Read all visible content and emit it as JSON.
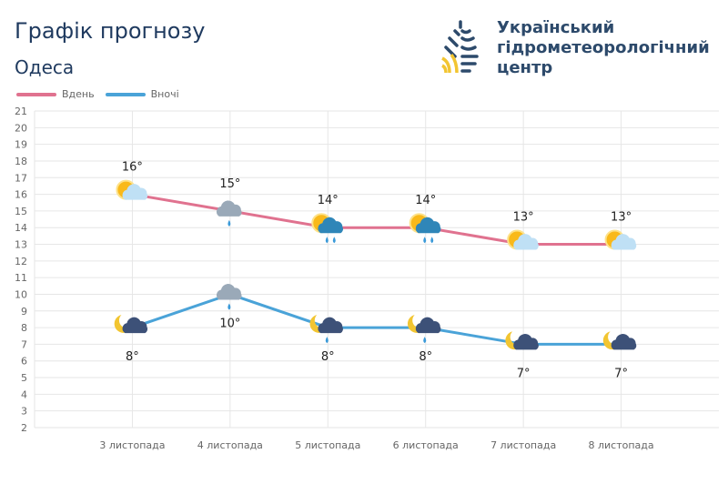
{
  "header": {
    "title": "Графік прогнозу",
    "city": "Одеса"
  },
  "logo": {
    "lines": [
      "Український",
      "гідрометеорологічний",
      "центр"
    ]
  },
  "chart_data": {
    "type": "line",
    "categories": [
      "3 листопада",
      "4 листопада",
      "5 листопада",
      "6 листопада",
      "7 листопада",
      "8 листопада"
    ],
    "series": [
      {
        "name": "Вдень",
        "color": "#e0728f",
        "values": [
          16,
          15,
          14,
          14,
          13,
          13
        ],
        "labels": [
          "16°",
          "15°",
          "14°",
          "14°",
          "13°",
          "13°"
        ],
        "icons": [
          "sun-cloud-icon",
          "cloud-rain-icon",
          "sun-cloud-rain-icon",
          "sun-cloud-rain-icon",
          "sun-cloud-icon",
          "sun-cloud-icon"
        ]
      },
      {
        "name": "Вночі",
        "color": "#4aa3d8",
        "values": [
          8,
          10,
          8,
          8,
          7,
          7
        ],
        "labels": [
          "8°",
          "10°",
          "8°",
          "8°",
          "7°",
          "7°"
        ],
        "icons": [
          "moon-cloud-icon",
          "cloud-rain-icon",
          "moon-cloud-rain-icon",
          "moon-cloud-rain-icon",
          "moon-cloud-icon",
          "moon-cloud-icon"
        ]
      }
    ],
    "ylim": [
      2,
      21
    ],
    "yticks": [
      2,
      3,
      4,
      5,
      6,
      7,
      8,
      9,
      10,
      11,
      12,
      13,
      14,
      15,
      16,
      17,
      18,
      19,
      20,
      21
    ],
    "grid": true,
    "legend": "top-left"
  }
}
